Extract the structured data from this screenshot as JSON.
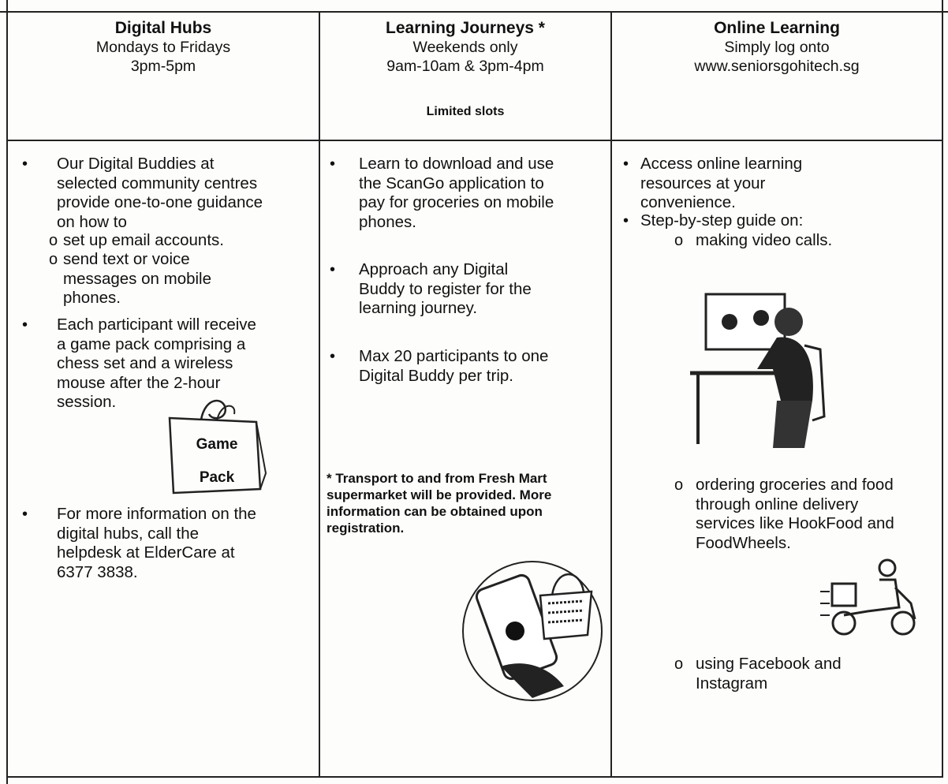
{
  "columns": [
    {
      "title": "Digital Hubs",
      "schedule": [
        "Mondays to Fridays",
        "3pm-5pm"
      ],
      "items": [
        {
          "text": "Our Digital Buddies at selected community centres provide one-to-one guidance on how to",
          "subitems": [
            "set up email accounts.",
            "send text or voice messages on mobile phones."
          ]
        },
        {
          "text": "Each participant will receive a game pack comprising a chess set and a wireless mouse after the 2-hour session."
        },
        {
          "text": "For more information on the digital hubs, call the helpdesk at ElderCare at 6377 3838."
        }
      ],
      "illustration_label": [
        "Game",
        "Pack"
      ]
    },
    {
      "title": "Learning Journeys *",
      "schedule": [
        "Weekends only",
        "9am-10am & 3pm-4pm"
      ],
      "notice": "Limited slots",
      "items": [
        {
          "text": "Learn to download and use the ScanGo application to pay for groceries on mobile phones."
        },
        {
          "text": "Approach any Digital Buddy to register for the learning journey."
        },
        {
          "text": "Max 20 participants to one Digital Buddy per trip."
        }
      ],
      "footnote": "* Transport to and from Fresh Mart supermarket will be provided. More information can be obtained upon registration."
    },
    {
      "title": "Online Learning",
      "schedule": [
        "Simply log onto",
        "www.seniorsgohitech.sg"
      ],
      "items": [
        {
          "text": "Access online learning resources at your convenience."
        },
        {
          "text": "Step-by-step guide on:",
          "subitems": [
            "making video calls.",
            "ordering groceries and food through online delivery services like HookFood and FoodWheels.",
            "using Facebook and Instagram"
          ]
        }
      ]
    }
  ]
}
